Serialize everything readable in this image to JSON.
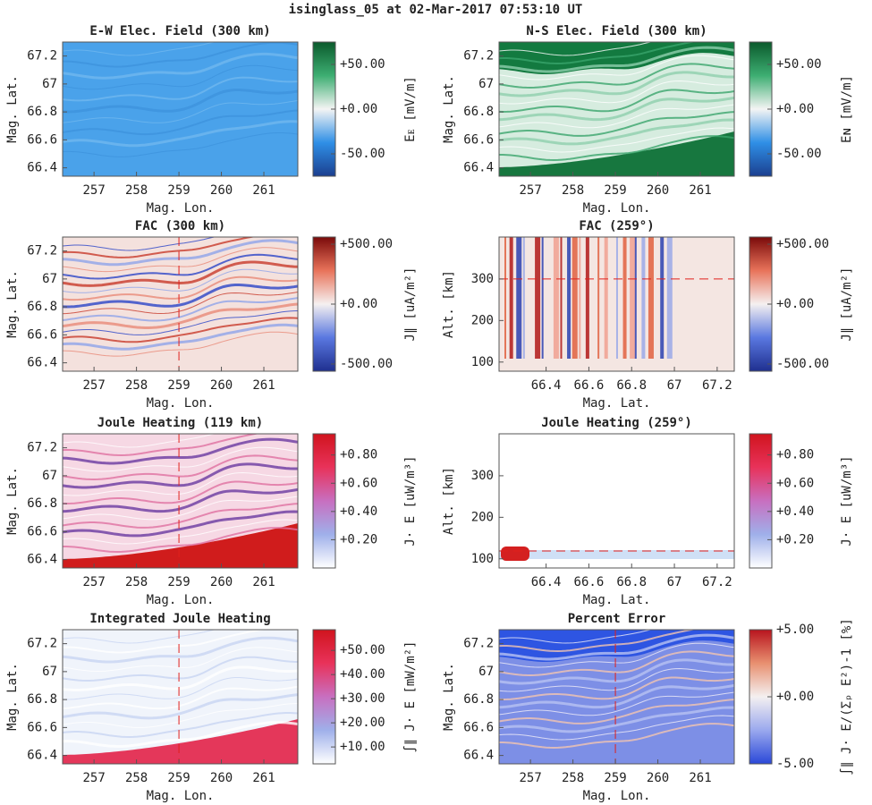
{
  "title": "isinglass_05 at 02-Mar-2017 07:53:10 UT",
  "chart_data": [
    {
      "type": "heatmap",
      "title": "E-W Elec. Field (300 km)",
      "xlabel": "Mag. Lon.",
      "ylabel": "Mag. Lat.",
      "xlim": [
        256.26,
        261.8
      ],
      "xticks": [
        257,
        258,
        259,
        260,
        261
      ],
      "ylim": [
        66.34,
        67.3
      ],
      "yticks": [
        66.4,
        66.6,
        66.8,
        67,
        67.2
      ],
      "clim": [
        -75,
        75
      ],
      "cticks": [
        {
          "value": 50,
          "label": "+50.00"
        },
        {
          "value": 0,
          "label": "+0.00"
        },
        {
          "value": -50,
          "label": "-50.00"
        }
      ],
      "colorbar_label": "Eᴇ [mV/m]",
      "colormap": [
        "#1b3f8f",
        "#2f8fe6",
        "#f4f4f4",
        "#3dae72",
        "#0b5a2c"
      ]
    },
    {
      "type": "heatmap",
      "title": "N-S Elec. Field (300 km)",
      "xlabel": "Mag. Lon.",
      "ylabel": "Mag. Lat.",
      "xlim": [
        256.26,
        261.8
      ],
      "xticks": [
        257,
        258,
        259,
        260,
        261
      ],
      "ylim": [
        66.34,
        67.3
      ],
      "yticks": [
        66.4,
        66.6,
        66.8,
        67,
        67.2
      ],
      "clim": [
        -75,
        75
      ],
      "cticks": [
        {
          "value": 50,
          "label": "+50.00"
        },
        {
          "value": 0,
          "label": "+0.00"
        },
        {
          "value": -50,
          "label": "-50.00"
        }
      ],
      "colorbar_label": "Eɴ [mV/m]",
      "colormap": [
        "#1b3f8f",
        "#2f8fe6",
        "#f4f4f4",
        "#3dae72",
        "#0b5a2c"
      ]
    },
    {
      "type": "heatmap",
      "title": "FAC (300 km)",
      "xlabel": "Mag. Lon.",
      "ylabel": "Mag. Lat.",
      "xlim": [
        256.26,
        261.8
      ],
      "xticks": [
        257,
        258,
        259,
        260,
        261
      ],
      "ylim": [
        66.34,
        67.3
      ],
      "yticks": [
        66.4,
        66.6,
        66.8,
        67,
        67.2
      ],
      "clim": [
        -560,
        560
      ],
      "cticks": [
        {
          "value": 500,
          "label": "+500.00"
        },
        {
          "value": 0,
          "label": "+0.00"
        },
        {
          "value": -500,
          "label": "-500.00"
        }
      ],
      "colorbar_label": "J∥ [uA/m²]",
      "colormap": [
        "#1f2f8f",
        "#5a78e0",
        "#f5f0f0",
        "#e8735a",
        "#7a0a0a"
      ],
      "cut_x": 259
    },
    {
      "type": "heatmap",
      "title": "FAC (259°)",
      "xlabel": "Mag. Lat.",
      "ylabel": "Alt. [km]",
      "xlim": [
        66.18,
        67.28
      ],
      "xticks": [
        66.4,
        66.6,
        66.8,
        67,
        67.2
      ],
      "ylim": [
        78,
        401
      ],
      "yticks": [
        100,
        200,
        300
      ],
      "clim": [
        -560,
        560
      ],
      "cticks": [
        {
          "value": 500,
          "label": "+500.00"
        },
        {
          "value": 0,
          "label": "+0.00"
        },
        {
          "value": -500,
          "label": "-500.00"
        }
      ],
      "colorbar_label": "J∥ [uA/m²]",
      "colormap": [
        "#1f2f8f",
        "#5a78e0",
        "#f5f0f0",
        "#e8735a",
        "#7a0a0a"
      ],
      "cut_y": 300
    },
    {
      "type": "heatmap",
      "title": "Joule Heating (119 km)",
      "xlabel": "Mag. Lon.",
      "ylabel": "Mag. Lat.",
      "xlim": [
        256.26,
        261.8
      ],
      "xticks": [
        257,
        258,
        259,
        260,
        261
      ],
      "ylim": [
        66.34,
        67.3
      ],
      "yticks": [
        66.4,
        66.6,
        66.8,
        67,
        67.2
      ],
      "clim": [
        0,
        0.95
      ],
      "cticks": [
        {
          "value": 0.8,
          "label": "+0.80"
        },
        {
          "value": 0.6,
          "label": "+0.60"
        },
        {
          "value": 0.4,
          "label": "+0.40"
        },
        {
          "value": 0.2,
          "label": "+0.20"
        }
      ],
      "colorbar_label": "J· E [uW/m³]",
      "colormap": [
        "#ffffff",
        "#9fb0ea",
        "#c86fc0",
        "#e8325a",
        "#d0141e"
      ],
      "cut_x": 259
    },
    {
      "type": "heatmap",
      "title": "Joule Heating (259°)",
      "xlabel": "Mag. Lat.",
      "ylabel": "Alt. [km]",
      "xlim": [
        66.18,
        67.28
      ],
      "xticks": [
        66.4,
        66.6,
        66.8,
        67,
        67.2
      ],
      "ylim": [
        78,
        401
      ],
      "yticks": [
        100,
        200,
        300
      ],
      "clim": [
        0,
        0.95
      ],
      "cticks": [
        {
          "value": 0.8,
          "label": "+0.80"
        },
        {
          "value": 0.6,
          "label": "+0.60"
        },
        {
          "value": 0.4,
          "label": "+0.40"
        },
        {
          "value": 0.2,
          "label": "+0.20"
        }
      ],
      "colorbar_label": "J· E [uW/m³]",
      "colormap": [
        "#ffffff",
        "#9fb0ea",
        "#c86fc0",
        "#e8325a",
        "#d0141e"
      ],
      "cut_y": 119
    },
    {
      "type": "heatmap",
      "title": "Integrated Joule Heating",
      "xlabel": "Mag. Lon.",
      "ylabel": "Mag. Lat.",
      "xlim": [
        256.26,
        261.8
      ],
      "xticks": [
        257,
        258,
        259,
        260,
        261
      ],
      "ylim": [
        66.34,
        67.3
      ],
      "yticks": [
        66.4,
        66.6,
        66.8,
        67,
        67.2
      ],
      "clim": [
        3,
        58.6
      ],
      "cticks": [
        {
          "value": 50,
          "label": "+50.00"
        },
        {
          "value": 40,
          "label": "+40.00"
        },
        {
          "value": 30,
          "label": "+30.00"
        },
        {
          "value": 20,
          "label": "+20.00"
        },
        {
          "value": 10,
          "label": "+10.00"
        }
      ],
      "colorbar_label": "∫∥ J· E [mW/m²]",
      "colormap": [
        "#ffffff",
        "#9fb0ea",
        "#c86fc0",
        "#e8325a",
        "#d0141e"
      ],
      "cut_x": 259
    },
    {
      "type": "heatmap",
      "title": "Percent Error",
      "xlabel": "Mag. Lon.",
      "ylabel": "Mag. Lat.",
      "xlim": [
        256.26,
        261.8
      ],
      "xticks": [
        257,
        258,
        259,
        260,
        261
      ],
      "ylim": [
        66.34,
        67.3
      ],
      "yticks": [
        66.4,
        66.6,
        66.8,
        67,
        67.2
      ],
      "clim": [
        -5,
        5
      ],
      "cticks": [
        {
          "value": 5,
          "label": "+5.00"
        },
        {
          "value": 0,
          "label": "+0.00"
        },
        {
          "value": -5,
          "label": "-5.00"
        }
      ],
      "colorbar_label": "∫∥ J· E/(Σₚ E²)-1 [%]",
      "colormap": [
        "#2a48d8",
        "#9aa8ee",
        "#f4f0f0",
        "#e89070",
        "#b8141e"
      ],
      "cut_x": 259
    }
  ]
}
